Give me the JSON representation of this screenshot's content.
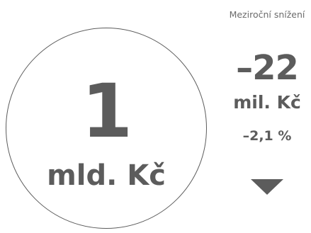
{
  "main": {
    "value": "1",
    "unit": "mld. Kč"
  },
  "change": {
    "label": "Meziroční snížení",
    "value": "–22",
    "unit": "mil. Kč",
    "percent": "–2,1 %",
    "direction_icon": "triangle-down-icon"
  },
  "colors": {
    "primary": "#5c5c5c"
  }
}
